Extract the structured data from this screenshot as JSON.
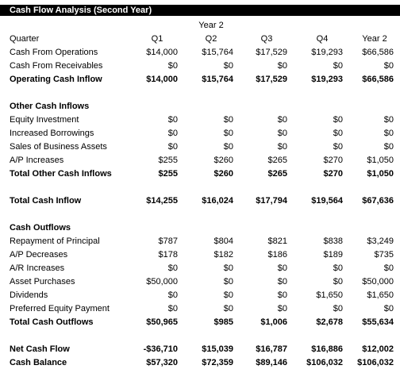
{
  "title": "Cash Flow Analysis (Second Year)",
  "header": {
    "year_label": "Year 2",
    "quarter_label": "Quarter",
    "columns": [
      "Q1",
      "Q2",
      "Q3",
      "Q4",
      "Year 2"
    ]
  },
  "rows": {
    "cash_from_operations": {
      "label": "Cash From Operations",
      "values": [
        "$14,000",
        "$15,764",
        "$17,529",
        "$19,293",
        "$66,586"
      ]
    },
    "cash_from_receivables": {
      "label": "Cash From Receivables",
      "values": [
        "$0",
        "$0",
        "$0",
        "$0",
        "$0"
      ]
    },
    "operating_cash_inflow": {
      "label": "Operating Cash Inflow",
      "values": [
        "$14,000",
        "$15,764",
        "$17,529",
        "$19,293",
        "$66,586"
      ]
    },
    "other_cash_inflows_heading": {
      "label": "Other Cash Inflows"
    },
    "equity_investment": {
      "label": "Equity Investment",
      "values": [
        "$0",
        "$0",
        "$0",
        "$0",
        "$0"
      ]
    },
    "increased_borrowings": {
      "label": "Increased Borrowings",
      "values": [
        "$0",
        "$0",
        "$0",
        "$0",
        "$0"
      ]
    },
    "sales_of_business_assets": {
      "label": "Sales of Business Assets",
      "values": [
        "$0",
        "$0",
        "$0",
        "$0",
        "$0"
      ]
    },
    "ap_increases": {
      "label": "A/P Increases",
      "values": [
        "$255",
        "$260",
        "$265",
        "$270",
        "$1,050"
      ]
    },
    "total_other_cash_inflows": {
      "label": "Total Other Cash Inflows",
      "values": [
        "$255",
        "$260",
        "$265",
        "$270",
        "$1,050"
      ]
    },
    "total_cash_inflow": {
      "label": "Total Cash Inflow",
      "values": [
        "$14,255",
        "$16,024",
        "$17,794",
        "$19,564",
        "$67,636"
      ]
    },
    "cash_outflows_heading": {
      "label": "Cash Outflows"
    },
    "repayment_of_principal": {
      "label": "Repayment of Principal",
      "values": [
        "$787",
        "$804",
        "$821",
        "$838",
        "$3,249"
      ]
    },
    "ap_decreases": {
      "label": "A/P Decreases",
      "values": [
        "$178",
        "$182",
        "$186",
        "$189",
        "$735"
      ]
    },
    "ar_increases": {
      "label": "A/R Increases",
      "values": [
        "$0",
        "$0",
        "$0",
        "$0",
        "$0"
      ]
    },
    "asset_purchases": {
      "label": "Asset Purchases",
      "values": [
        "$50,000",
        "$0",
        "$0",
        "$0",
        "$50,000"
      ]
    },
    "dividends": {
      "label": "Dividends",
      "values": [
        "$0",
        "$0",
        "$0",
        "$1,650",
        "$1,650"
      ]
    },
    "preferred_equity_payment": {
      "label": "Preferred Equity Payment",
      "values": [
        "$0",
        "$0",
        "$0",
        "$0",
        "$0"
      ]
    },
    "total_cash_outflows": {
      "label": "Total Cash Outflows",
      "values": [
        "$50,965",
        "$985",
        "$1,006",
        "$2,678",
        "$55,634"
      ]
    },
    "net_cash_flow": {
      "label": "Net Cash Flow",
      "values": [
        "-$36,710",
        "$15,039",
        "$16,787",
        "$16,886",
        "$12,002"
      ]
    },
    "cash_balance": {
      "label": "Cash Balance",
      "values": [
        "$57,320",
        "$72,359",
        "$89,146",
        "$106,032",
        "$106,032"
      ]
    }
  }
}
